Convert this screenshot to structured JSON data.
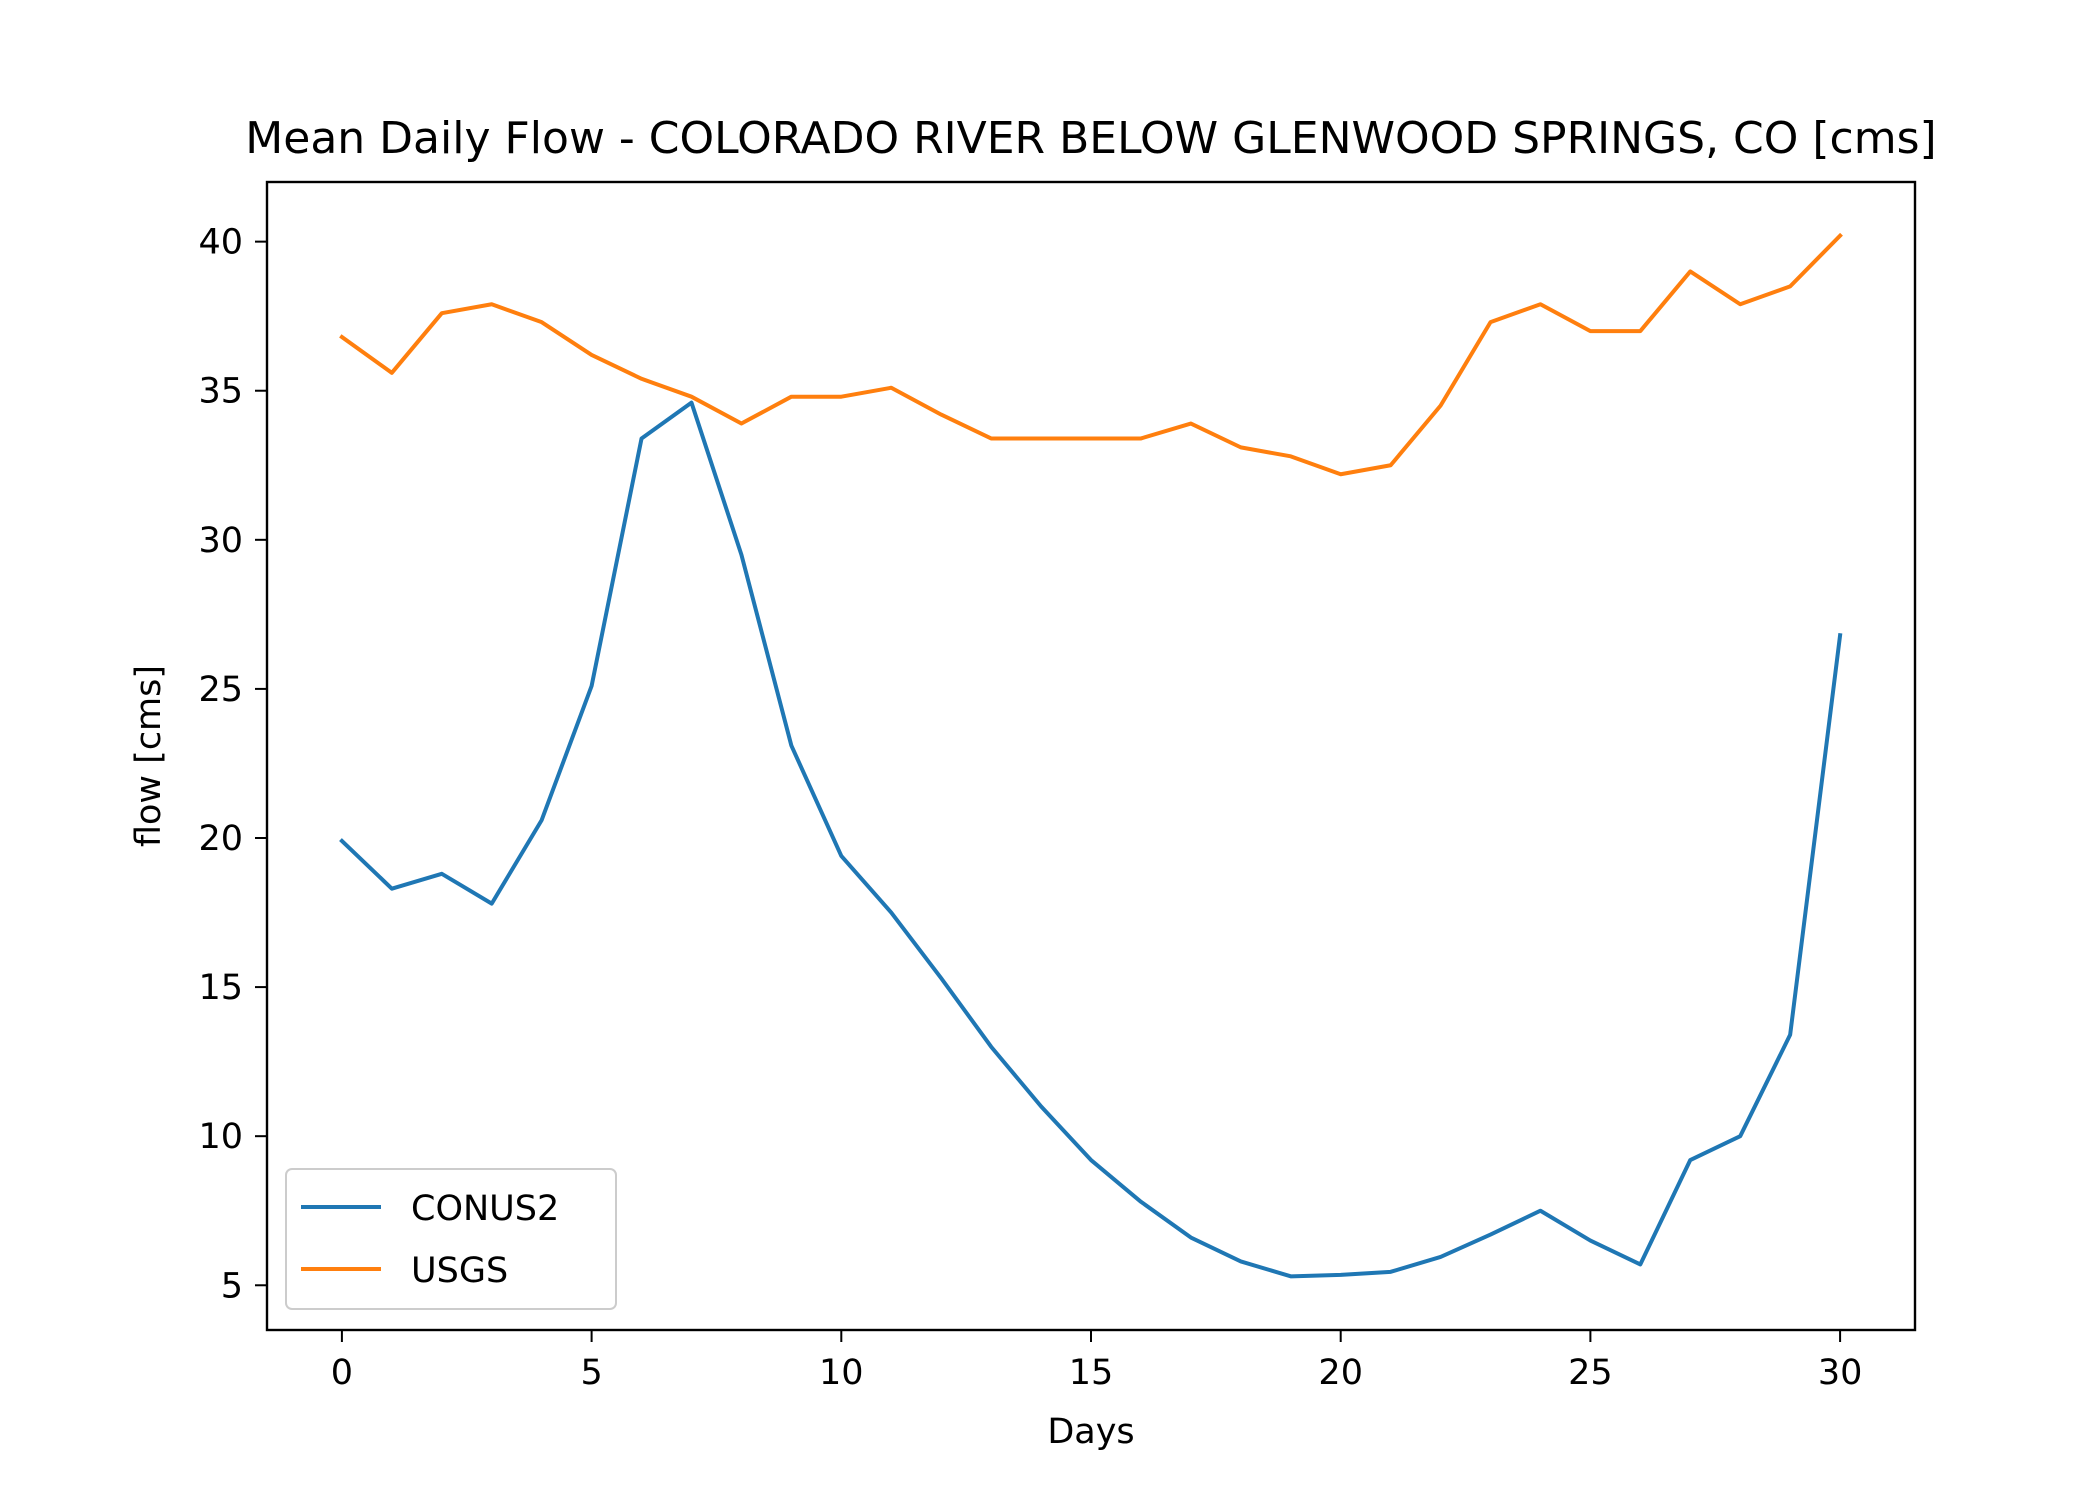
{
  "chart_data": {
    "type": "line",
    "title": "Mean Daily Flow - COLORADO RIVER BELOW GLENWOOD SPRINGS, CO [cms]",
    "xlabel": "Days",
    "ylabel": "flow [cms]",
    "xlim": [
      -1.5,
      31.5
    ],
    "ylim": [
      3.5,
      42
    ],
    "xticks": [
      0,
      5,
      10,
      15,
      20,
      25,
      30
    ],
    "yticks": [
      5,
      10,
      15,
      20,
      25,
      30,
      35,
      40
    ],
    "grid": false,
    "legend_position": "lower-left",
    "x": [
      0,
      1,
      2,
      3,
      4,
      5,
      6,
      7,
      8,
      9,
      10,
      11,
      12,
      13,
      14,
      15,
      16,
      17,
      18,
      19,
      20,
      21,
      22,
      23,
      24,
      25,
      26,
      27,
      28,
      29,
      30
    ],
    "series": [
      {
        "name": "CONUS2",
        "color": "#1f77b4",
        "values": [
          19.9,
          18.3,
          18.8,
          17.8,
          20.6,
          25.1,
          33.4,
          34.6,
          29.5,
          23.1,
          19.4,
          17.5,
          15.3,
          13.0,
          11.0,
          9.2,
          7.8,
          6.6,
          5.8,
          5.3,
          5.35,
          5.45,
          5.95,
          6.7,
          7.5,
          6.5,
          5.7,
          9.2,
          10.0,
          13.4,
          26.8
        ]
      },
      {
        "name": "USGS",
        "color": "#ff7f0e",
        "values": [
          36.8,
          35.6,
          37.6,
          37.9,
          37.3,
          36.2,
          35.4,
          34.8,
          33.9,
          34.8,
          34.8,
          35.1,
          34.2,
          33.4,
          33.4,
          33.4,
          33.4,
          33.9,
          33.1,
          32.8,
          32.2,
          32.5,
          34.5,
          37.3,
          37.9,
          37.0,
          37.0,
          39.0,
          37.9,
          38.5,
          40.2
        ]
      }
    ]
  }
}
